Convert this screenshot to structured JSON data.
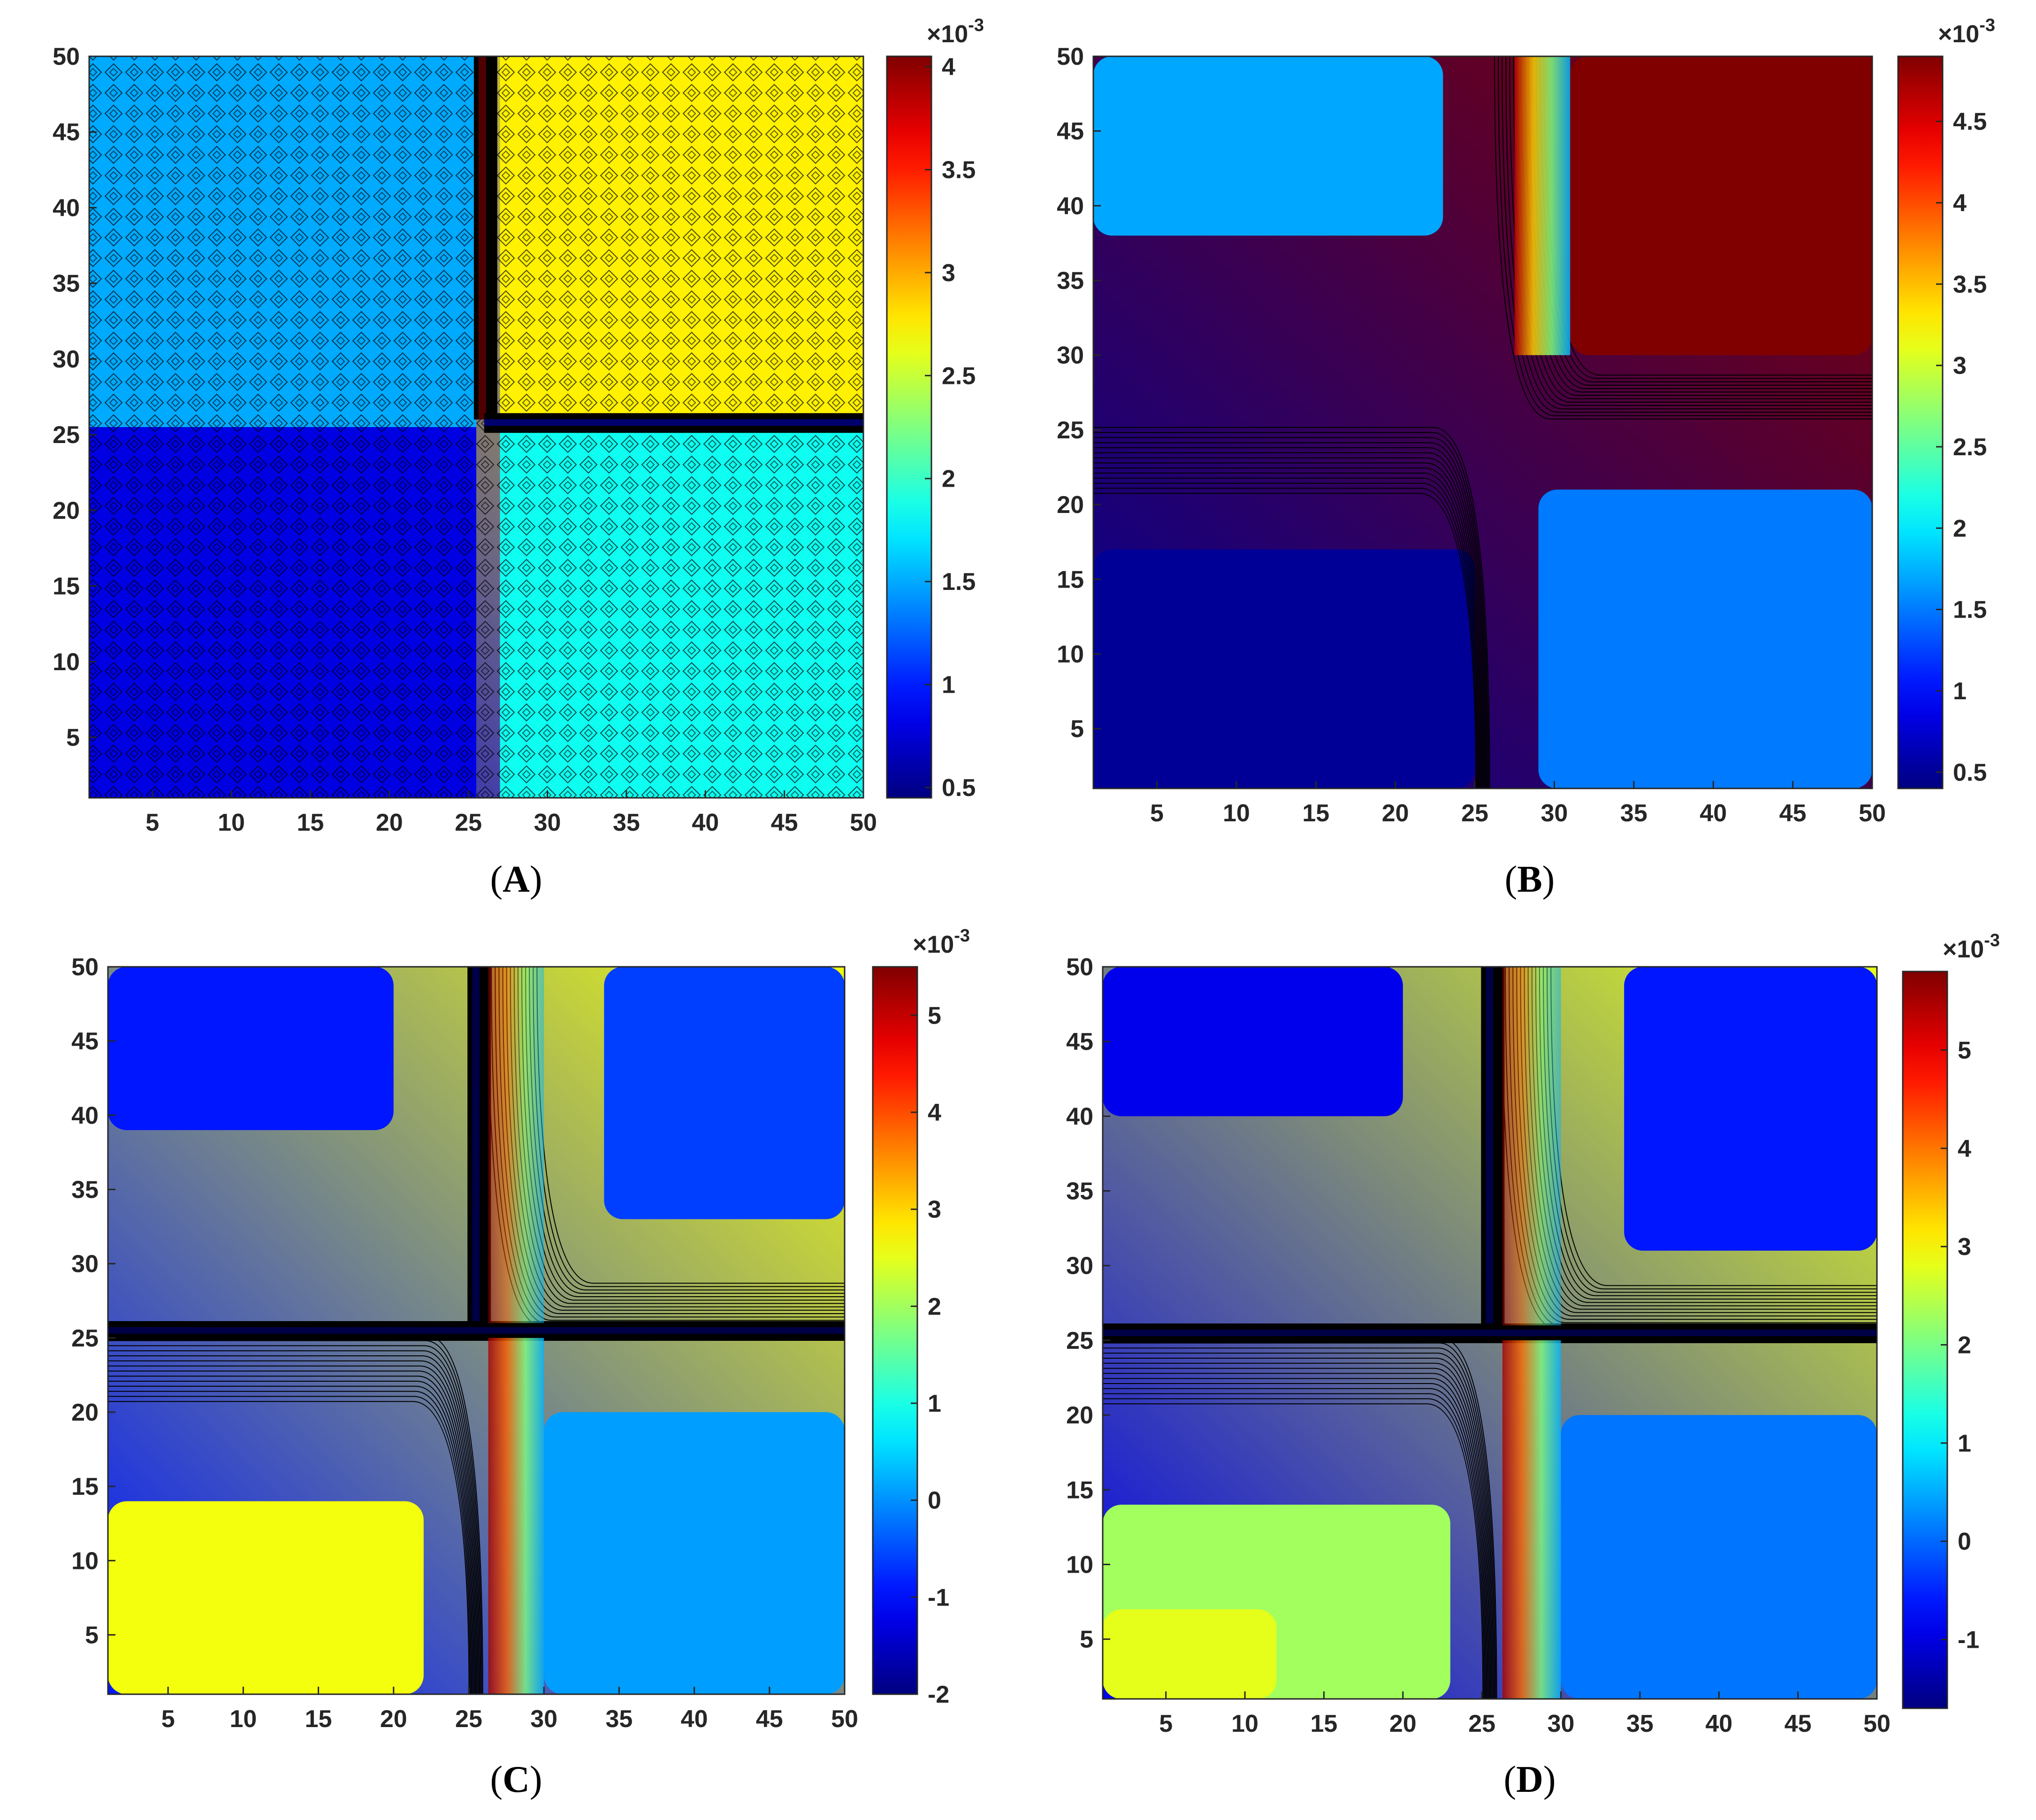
{
  "chart_data": [
    {
      "type": "heatmap",
      "subtitle": "(A)",
      "panel_letter": "A",
      "x_range": [
        1,
        50
      ],
      "y_range": [
        1,
        50
      ],
      "xticks": [
        5,
        10,
        15,
        20,
        25,
        30,
        35,
        40,
        45,
        50
      ],
      "yticks": [
        5,
        10,
        15,
        20,
        25,
        30,
        35,
        40,
        45,
        50
      ],
      "colorbar": {
        "min": 0.45,
        "max": 4.05,
        "ticks": [
          0.5,
          1,
          1.5,
          2,
          2.5,
          3,
          3.5,
          4
        ],
        "exponent_label": "×10-3",
        "exponent_base": "×10",
        "exponent_power": "-3"
      },
      "regions": [
        {
          "name": "bottom-left",
          "x": [
            1,
            25.5
          ],
          "y": [
            1,
            25.5
          ],
          "value": 0.8
        },
        {
          "name": "top-left",
          "x": [
            1,
            25.5
          ],
          "y": [
            25.5,
            50
          ],
          "value": 1.5
        },
        {
          "name": "bottom-right",
          "x": [
            27,
            50
          ],
          "y": [
            1,
            25.5
          ],
          "value": 1.85
        },
        {
          "name": "top-right",
          "x": [
            27,
            50
          ],
          "y": [
            26,
            50
          ],
          "value": 2.75
        }
      ],
      "stripes": [
        {
          "orientation": "vertical",
          "at": 26,
          "from": 26,
          "to": 50,
          "value": 4.0
        },
        {
          "orientation": "horizontal",
          "at": 25.8,
          "from": 26,
          "to": 50,
          "value": 0.7
        }
      ]
    },
    {
      "type": "heatmap",
      "subtitle": "(B)",
      "panel_letter": "B",
      "x_range": [
        1,
        50
      ],
      "y_range": [
        1,
        50
      ],
      "xticks": [
        5,
        10,
        15,
        20,
        25,
        30,
        35,
        40,
        45,
        50
      ],
      "yticks": [
        5,
        10,
        15,
        20,
        25,
        30,
        35,
        40,
        45,
        50
      ],
      "colorbar": {
        "min": 0.4,
        "max": 4.9,
        "ticks": [
          0.5,
          1,
          1.5,
          2,
          2.5,
          3,
          3.5,
          4,
          4.5
        ],
        "exponent_label": "×10-3",
        "exponent_base": "×10",
        "exponent_power": "-3"
      },
      "regions": [
        {
          "name": "bottom-left",
          "x": [
            1,
            25
          ],
          "y": [
            1,
            17
          ],
          "value": 0.5
        },
        {
          "name": "bottom-right",
          "x": [
            29,
            50
          ],
          "y": [
            1,
            21
          ],
          "value": 1.5
        },
        {
          "name": "top-left",
          "x": [
            1,
            23
          ],
          "y": [
            38,
            50
          ],
          "value": 1.7
        },
        {
          "name": "top-right",
          "x": [
            31,
            50
          ],
          "y": [
            30,
            50
          ],
          "value": 4.9
        }
      ],
      "stripes": []
    },
    {
      "type": "heatmap",
      "subtitle": "(C)",
      "panel_letter": "C",
      "x_range": [
        1,
        50
      ],
      "y_range": [
        1,
        50
      ],
      "xticks": [
        5,
        10,
        15,
        20,
        25,
        30,
        35,
        40,
        45,
        50
      ],
      "yticks": [
        5,
        10,
        15,
        20,
        25,
        30,
        35,
        40,
        45,
        50
      ],
      "colorbar": {
        "min": -2,
        "max": 5.5,
        "ticks": [
          -2,
          -1,
          0,
          1,
          2,
          3,
          4,
          5
        ],
        "exponent_label": "×10-3",
        "exponent_base": "×10",
        "exponent_power": "-3"
      },
      "regions": [
        {
          "name": "bottom-left",
          "x": [
            1,
            22
          ],
          "y": [
            1,
            14
          ],
          "value": 2.6
        },
        {
          "name": "bottom-right",
          "x": [
            30,
            50
          ],
          "y": [
            1,
            20
          ],
          "value": 0.1
        },
        {
          "name": "top-left",
          "x": [
            1,
            20
          ],
          "y": [
            39,
            50
          ],
          "value": -0.9
        },
        {
          "name": "top-right",
          "x": [
            34,
            50
          ],
          "y": [
            33,
            50
          ],
          "value": -0.6
        }
      ],
      "stripes": [
        {
          "orientation": "vertical",
          "at": 25.6,
          "from": 26,
          "to": 50,
          "value": -2
        },
        {
          "orientation": "horizontal",
          "at": 25.5,
          "from": 1,
          "to": 50,
          "value": -2
        }
      ]
    },
    {
      "type": "heatmap",
      "subtitle": "(D)",
      "panel_letter": "D",
      "x_range": [
        1,
        50
      ],
      "y_range": [
        1,
        50
      ],
      "xticks": [
        5,
        10,
        15,
        20,
        25,
        30,
        35,
        40,
        45,
        50
      ],
      "yticks": [
        5,
        10,
        15,
        20,
        25,
        30,
        35,
        40,
        45,
        50
      ],
      "colorbar": {
        "min": -1.7,
        "max": 5.8,
        "ticks": [
          -1,
          0,
          1,
          2,
          3,
          4,
          5
        ],
        "exponent_label": "×10-3",
        "exponent_base": "×10",
        "exponent_power": "-3"
      },
      "regions": [
        {
          "name": "bottom-left",
          "x": [
            1,
            23
          ],
          "y": [
            1,
            14
          ],
          "value": 2.3
        },
        {
          "name": "bottom-left-core",
          "x": [
            1,
            12
          ],
          "y": [
            1,
            7
          ],
          "value": 2.8
        },
        {
          "name": "bottom-right",
          "x": [
            30,
            50
          ],
          "y": [
            1,
            20
          ],
          "value": 0.1
        },
        {
          "name": "top-left",
          "x": [
            1,
            20
          ],
          "y": [
            40,
            50
          ],
          "value": -0.9
        },
        {
          "name": "top-right",
          "x": [
            34,
            50
          ],
          "y": [
            31,
            50
          ],
          "value": -0.6
        }
      ],
      "stripes": [
        {
          "orientation": "vertical",
          "at": 25.6,
          "from": 26,
          "to": 50,
          "value": -1.7
        },
        {
          "orientation": "horizontal",
          "at": 25.5,
          "from": 1,
          "to": 50,
          "value": -1.7
        }
      ]
    }
  ]
}
